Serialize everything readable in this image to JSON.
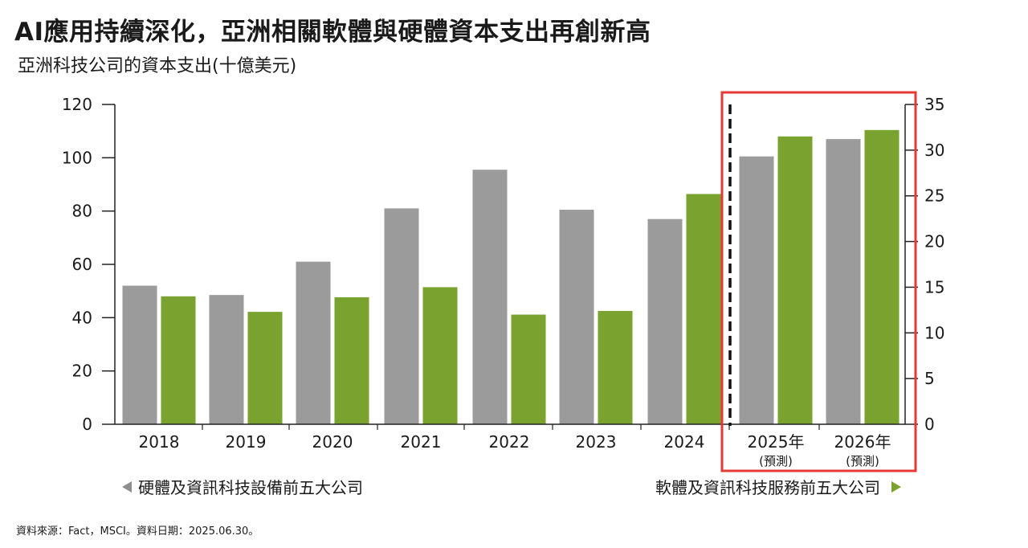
{
  "title": "AI應用持續深化，亞洲相關軟體與硬體資本支出再創新高",
  "subtitle": "亞洲科技公司的資本支出(十億美元)",
  "legend": {
    "left_label": "硬體及資訊科技設備前五大公司",
    "right_label": "軟體及資訊科技服務前五大公司"
  },
  "source": "資料來源：Fact，MSCI。資料日期：2025.06.30。",
  "colors": {
    "hardware": "#9b9b9b",
    "software": "#7aa22e",
    "highlight_box": "#e53935"
  },
  "chart_data": {
    "type": "bar",
    "categories": [
      "2018",
      "2019",
      "2020",
      "2021",
      "2022",
      "2023",
      "2024",
      "2025年",
      "2026年"
    ],
    "category_notes": [
      "",
      "",
      "",
      "",
      "",
      "",
      "",
      "(預測)",
      "(預測)"
    ],
    "series": [
      {
        "name": "硬體及資訊科技設備前五大公司",
        "axis": "left",
        "values": [
          52,
          48.5,
          61,
          81,
          95.5,
          80.5,
          77,
          100.5,
          107
        ]
      },
      {
        "name": "軟體及資訊科技服務前五大公司",
        "axis": "right",
        "values": [
          14,
          12.3,
          13.9,
          15,
          12,
          12.4,
          25.2,
          31.5,
          32.2
        ]
      }
    ],
    "y_left": {
      "range": [
        0,
        120
      ],
      "ticks": [
        "0",
        "20",
        "40",
        "60",
        "80",
        "100",
        "120"
      ]
    },
    "y_right": {
      "range": [
        0,
        35
      ],
      "ticks": [
        "0",
        "5",
        "10",
        "15",
        "20",
        "25",
        "30",
        "35"
      ]
    },
    "forecast_from_index": 7,
    "grid": false
  }
}
